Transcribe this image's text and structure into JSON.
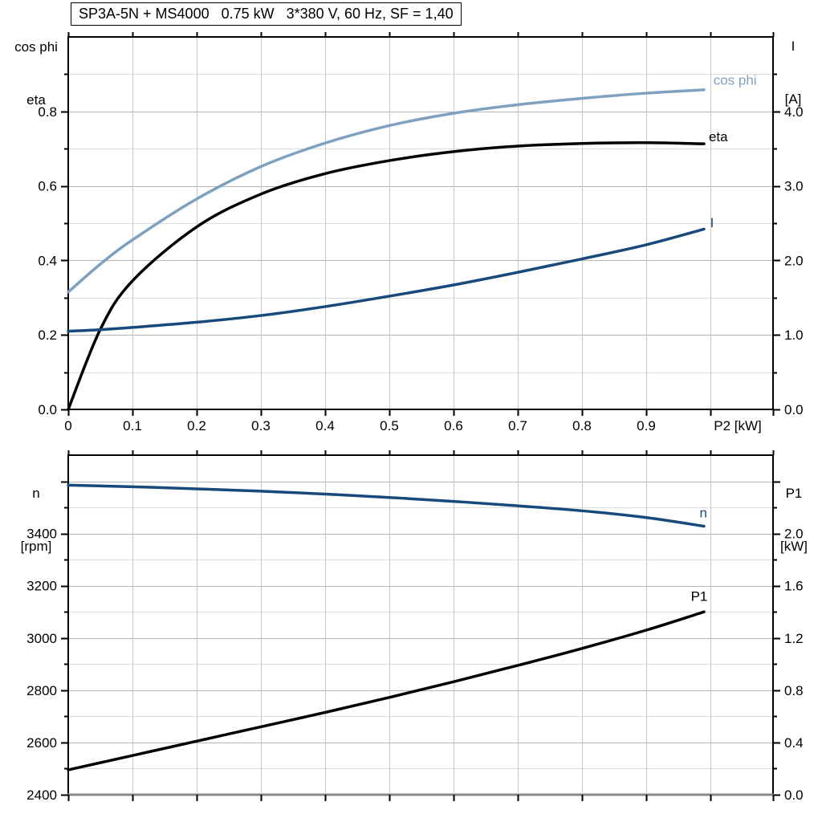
{
  "title_box": "SP3A-5N + MS4000   0.75 kW   3*380 V, 60 Hz, SF = 1,40",
  "colors": {
    "dark_blue": "#17497B",
    "light_blue": "#7FA1C0",
    "black": "#000000",
    "grid_minor": "#dcdcdc",
    "grid_major": "#b4b4b4",
    "grid_vertical": "#c8c8c8",
    "frame": "#000000",
    "baseline_gray": "#888888"
  },
  "chart_data": [
    {
      "id": "upper-motor-chart",
      "type": "line",
      "x_values": [
        0,
        0.05,
        0.1,
        0.2,
        0.3,
        0.4,
        0.5,
        0.6,
        0.7,
        0.8,
        0.9,
        0.99
      ],
      "series": [
        {
          "name": "cos phi",
          "axis": "left",
          "color_key": "light_blue",
          "values": [
            0.315,
            0.39,
            0.455,
            0.565,
            0.652,
            0.715,
            0.762,
            0.795,
            0.818,
            0.835,
            0.849,
            0.858
          ],
          "label": {
            "text": "cos phi",
            "x": 1.072,
            "y": 0.733,
            "anchor": "end"
          }
        },
        {
          "name": "eta",
          "axis": "left",
          "color_key": "black",
          "values": [
            0,
            0.215,
            0.345,
            0.49,
            0.578,
            0.633,
            0.668,
            0.692,
            0.707,
            0.714,
            0.716,
            0.713
          ],
          "label": {
            "text": "eta",
            "x": 1.027,
            "y": 0.733,
            "anchor": "end"
          }
        },
        {
          "name": "I",
          "axis": "right",
          "color_key": "dark_blue",
          "values": [
            1.05,
            1.07,
            1.1,
            1.17,
            1.26,
            1.38,
            1.52,
            1.67,
            1.84,
            2.02,
            2.21,
            2.42
          ],
          "label": {
            "text": "I",
            "x": 1.0025,
            "y": 2.51,
            "anchor": "middle"
          }
        }
      ],
      "label_overrides": {
        "cos phi_y": 0.885
      },
      "axes": {
        "x": {
          "range": [
            0,
            1.0975
          ],
          "gridline_values": [
            0.1,
            0.2,
            0.3,
            0.4,
            0.5,
            0.6,
            0.7,
            0.8,
            0.9,
            1.0
          ],
          "tick_values": [
            0,
            0.1,
            0.2,
            0.3,
            0.4,
            0.5,
            0.6,
            0.7,
            0.8,
            0.9,
            1.0,
            1.0975
          ],
          "tick_labels": [
            "0",
            "0.1",
            "0.2",
            "0.3",
            "0.4",
            "0.5",
            "0.6",
            "0.7",
            "0.8",
            "0.9",
            "",
            ""
          ],
          "axis_label": "P2 [kW]",
          "axis_label_x": 1.0425
        },
        "y_left": {
          "title_lines": [
            "cos phi",
            "eta"
          ],
          "range": [
            0,
            1.0
          ],
          "major_ticks": [
            0,
            0.2,
            0.4,
            0.6,
            0.8
          ],
          "major_labels": [
            "0.0",
            "0.2",
            "0.4",
            "0.6",
            "0.8"
          ],
          "minor_ticks": [
            0.1,
            0.3,
            0.5,
            0.7,
            0.9
          ]
        },
        "y_right": {
          "title_lines": [
            "I",
            "[A]"
          ],
          "range": [
            0,
            5.0
          ],
          "major_ticks": [
            0,
            1,
            2,
            3,
            4
          ],
          "major_labels": [
            "0.0",
            "1.0",
            "2.0",
            "3.0",
            "4.0"
          ],
          "minor_ticks": [
            0.5,
            1.5,
            2.5,
            3.5,
            4.5
          ]
        }
      }
    },
    {
      "id": "lower-motor-chart",
      "type": "line",
      "x_values": [
        0,
        0.1,
        0.2,
        0.3,
        0.4,
        0.5,
        0.6,
        0.7,
        0.8,
        0.9,
        0.99
      ],
      "series": [
        {
          "name": "n",
          "axis": "left",
          "color_key": "dark_blue",
          "values": [
            3585,
            3579,
            3571,
            3562,
            3551,
            3538,
            3523,
            3506,
            3487,
            3461,
            3428
          ],
          "label": {
            "text": "n",
            "x": 0.989,
            "y": 3480,
            "anchor": "middle"
          }
        },
        {
          "name": "P1",
          "axis": "right",
          "color_key": "black",
          "values": [
            0.19,
            0.3,
            0.41,
            0.52,
            0.63,
            0.745,
            0.865,
            0.99,
            1.12,
            1.26,
            1.4
          ],
          "label": {
            "text": "P1",
            "x": 0.9825,
            "y": 1.52,
            "anchor": "middle"
          }
        }
      ],
      "axes": {
        "x": {
          "range": [
            0,
            1.0975
          ],
          "gridline_values": [
            0.1,
            0.2,
            0.3,
            0.4,
            0.5,
            0.6,
            0.7,
            0.8,
            0.9,
            1.0
          ],
          "tick_values": [
            0,
            0.1,
            0.2,
            0.3,
            0.4,
            0.5,
            0.6,
            0.7,
            0.8,
            0.9,
            1.0,
            1.0975
          ],
          "tick_labels": [
            "",
            "",
            "",
            "",
            "",
            "",
            "",
            "",
            "",
            "",
            "",
            ""
          ],
          "axis_label": "",
          "axis_label_x": null
        },
        "y_left": {
          "title_lines": [
            "n",
            "[rpm]"
          ],
          "range": [
            2400,
            3700
          ],
          "major_ticks": [
            2400,
            2600,
            2800,
            3000,
            3200,
            3400,
            3600
          ],
          "major_labels": [
            "2400",
            "2600",
            "2800",
            "3000",
            "3200",
            "3400",
            ""
          ],
          "minor_ticks": [
            2500,
            2700,
            2900,
            3100,
            3300,
            3500
          ]
        },
        "y_right": {
          "title_lines": [
            "P1",
            "[kW]"
          ],
          "range": [
            0,
            2.6
          ],
          "major_ticks": [
            0,
            0.4,
            0.8,
            1.2,
            1.6,
            2.0,
            2.4
          ],
          "major_labels": [
            "0.0",
            "0.4",
            "0.8",
            "1.2",
            "1.6",
            "2.0",
            ""
          ],
          "minor_ticks": [
            0.2,
            0.6,
            1.0,
            1.4,
            1.8,
            2.2
          ]
        }
      }
    }
  ]
}
